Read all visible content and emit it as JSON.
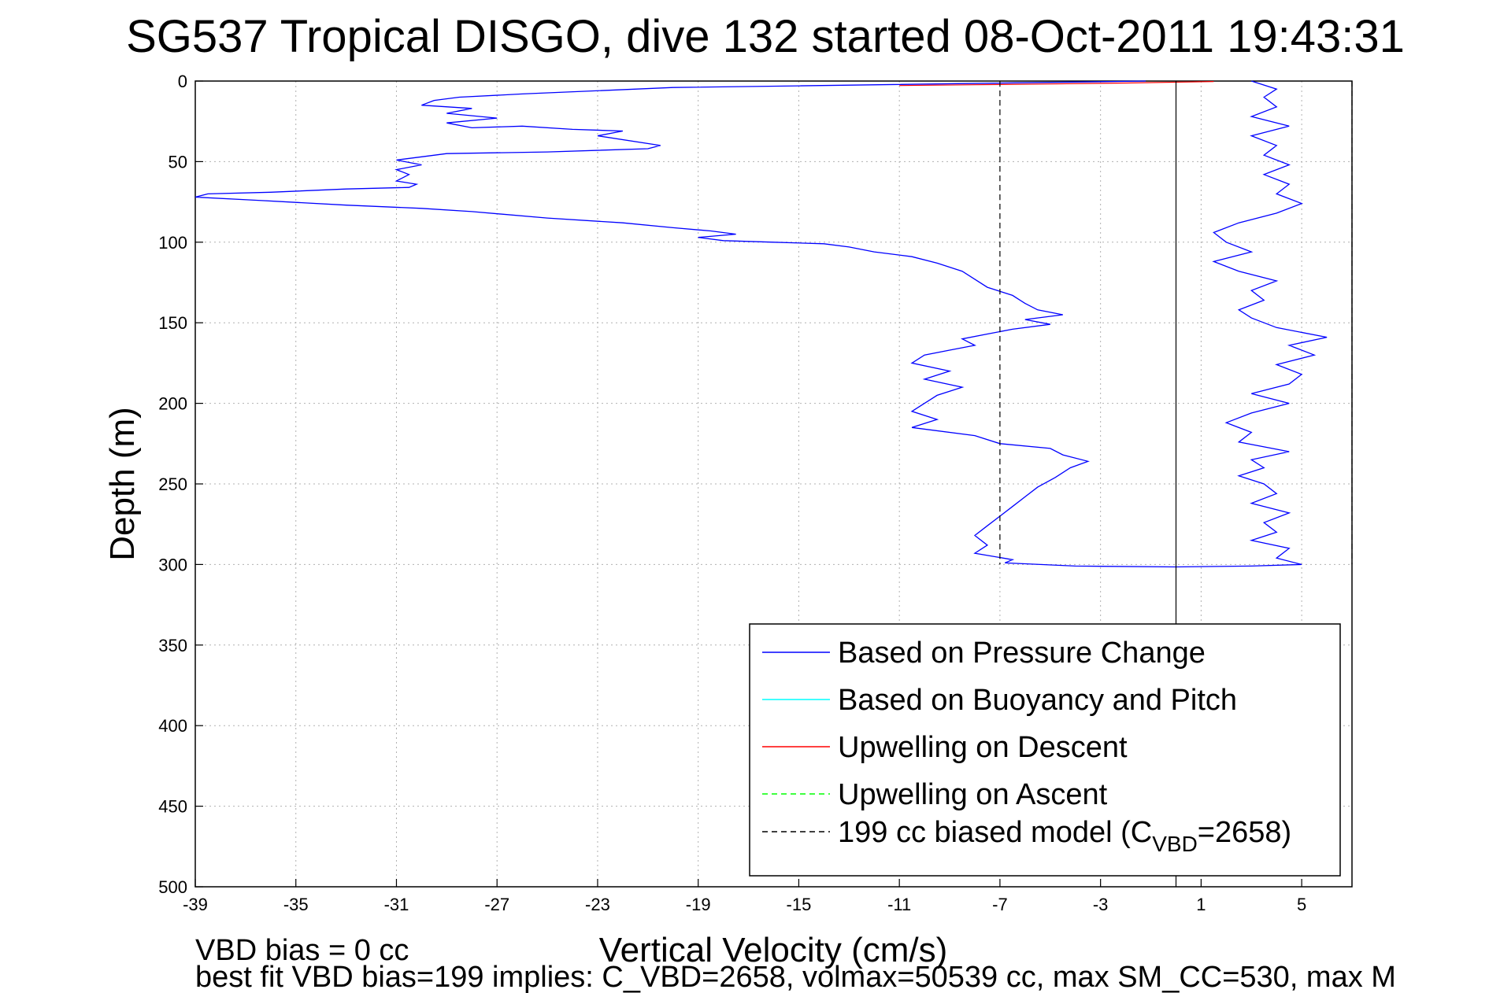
{
  "chart_data": {
    "type": "line",
    "title": "SG537 Tropical DISGO, dive 132 started 08-Oct-2011 19:43:31",
    "xlabel": "Vertical Velocity (cm/s)",
    "ylabel": "Depth (m)",
    "xlim": [
      -39,
      7
    ],
    "ylim": [
      0,
      500
    ],
    "y_reversed": true,
    "grid": true,
    "x_ticks": [
      -39,
      -35,
      -31,
      -27,
      -23,
      -19,
      -15,
      -11,
      -7,
      -3,
      1,
      5
    ],
    "y_ticks": [
      0,
      50,
      100,
      150,
      200,
      250,
      300,
      350,
      400,
      450,
      500
    ],
    "legend_position": "bottom-right",
    "legend": [
      {
        "label": "Based on Pressure Change",
        "color": "#0000ff",
        "style": "solid"
      },
      {
        "label": "Based on Buoyancy and Pitch",
        "color": "#00ffff",
        "style": "solid"
      },
      {
        "label": "Upwelling on Descent",
        "color": "#ff0000",
        "style": "solid"
      },
      {
        "label": "Upwelling on Ascent",
        "color": "#00ff00",
        "style": "dashed"
      },
      {
        "label": "199 cc biased model (C",
        "sub": "VBD",
        "tail": "=2658)",
        "color": "#000000",
        "style": "dashed"
      }
    ],
    "series": [
      {
        "color": "#0000ff",
        "style": "solid",
        "points": [
          [
            -1.2,
            0
          ],
          [
            -15,
            3
          ],
          [
            -20,
            4
          ],
          [
            -26,
            8
          ],
          [
            -28.5,
            10
          ],
          [
            -29.5,
            12
          ],
          [
            -30,
            15
          ],
          [
            -28,
            17
          ],
          [
            -29,
            20
          ],
          [
            -27,
            23
          ],
          [
            -29,
            26
          ],
          [
            -28,
            29
          ],
          [
            -26,
            28
          ],
          [
            -24,
            30
          ],
          [
            -22,
            31
          ],
          [
            -23,
            34
          ],
          [
            -20.5,
            40
          ],
          [
            -21,
            42
          ],
          [
            -25,
            44
          ],
          [
            -29,
            45
          ],
          [
            -30,
            47
          ],
          [
            -31,
            49
          ],
          [
            -30,
            52
          ],
          [
            -31,
            55
          ],
          [
            -30.5,
            58
          ],
          [
            -31,
            62
          ],
          [
            -30.2,
            64
          ],
          [
            -30.5,
            66
          ],
          [
            -33,
            67
          ],
          [
            -36,
            69
          ],
          [
            -38.5,
            70
          ],
          [
            -39,
            72
          ],
          [
            -36.5,
            74
          ],
          [
            -33,
            77
          ],
          [
            -30,
            79
          ],
          [
            -28,
            81
          ],
          [
            -25,
            85
          ],
          [
            -22,
            88
          ],
          [
            -20,
            91
          ],
          [
            -18.5,
            93
          ],
          [
            -17.5,
            95
          ],
          [
            -19,
            97
          ],
          [
            -18,
            99
          ],
          [
            -16,
            100
          ],
          [
            -14,
            101
          ],
          [
            -13,
            103
          ],
          [
            -12,
            106
          ],
          [
            -10.5,
            109
          ],
          [
            -9.5,
            113
          ],
          [
            -8.5,
            118
          ],
          [
            -8,
            123
          ],
          [
            -7.5,
            128
          ],
          [
            -6.5,
            133
          ],
          [
            -6,
            138
          ],
          [
            -5.5,
            142
          ],
          [
            -4.5,
            145
          ],
          [
            -6,
            148
          ],
          [
            -5,
            151
          ],
          [
            -6.5,
            154
          ],
          [
            -7.5,
            157
          ],
          [
            -8.5,
            160
          ],
          [
            -8,
            164
          ],
          [
            -9,
            167
          ],
          [
            -10,
            170
          ],
          [
            -10.5,
            175
          ],
          [
            -9,
            180
          ],
          [
            -10,
            185
          ],
          [
            -8.5,
            190
          ],
          [
            -9.5,
            195
          ],
          [
            -10,
            200
          ],
          [
            -10.5,
            205
          ],
          [
            -9.5,
            210
          ],
          [
            -10.5,
            215
          ],
          [
            -8,
            220
          ],
          [
            -7,
            225
          ],
          [
            -5,
            228
          ],
          [
            -4.5,
            232
          ],
          [
            -3.5,
            236
          ],
          [
            -4.2,
            240
          ],
          [
            -4.8,
            246
          ],
          [
            -5.5,
            252
          ],
          [
            -6,
            258
          ],
          [
            -6.5,
            264
          ],
          [
            -7,
            270
          ],
          [
            -7.5,
            276
          ],
          [
            -8,
            282
          ],
          [
            -7.5,
            288
          ],
          [
            -8,
            293
          ],
          [
            -6.5,
            297
          ],
          [
            -6.8,
            299
          ],
          [
            -4,
            301
          ],
          [
            0,
            301.5
          ],
          [
            3,
            301
          ],
          [
            5,
            300
          ],
          [
            4,
            296
          ],
          [
            4.5,
            290
          ],
          [
            3,
            285
          ],
          [
            4,
            280
          ],
          [
            3.5,
            274
          ],
          [
            4.5,
            268
          ],
          [
            3,
            262
          ],
          [
            4,
            256
          ],
          [
            3.5,
            250
          ],
          [
            2.5,
            245
          ],
          [
            3.5,
            240
          ],
          [
            3,
            235
          ],
          [
            4.5,
            230
          ],
          [
            2.5,
            224
          ],
          [
            3,
            218
          ],
          [
            2,
            212
          ],
          [
            3,
            206
          ],
          [
            4.5,
            200
          ],
          [
            3,
            194
          ],
          [
            4.5,
            188
          ],
          [
            5,
            182
          ],
          [
            4,
            176
          ],
          [
            5.5,
            170
          ],
          [
            4.5,
            164
          ],
          [
            6,
            159
          ],
          [
            4,
            153
          ],
          [
            3,
            147
          ],
          [
            2.5,
            142
          ],
          [
            3.5,
            136
          ],
          [
            3,
            130
          ],
          [
            4,
            124
          ],
          [
            2.5,
            118
          ],
          [
            1.5,
            112
          ],
          [
            3,
            106
          ],
          [
            2,
            100
          ],
          [
            1.5,
            94
          ],
          [
            2.5,
            88
          ],
          [
            4,
            82
          ],
          [
            5,
            76
          ],
          [
            4,
            70
          ],
          [
            4.5,
            64
          ],
          [
            3.5,
            58
          ],
          [
            4.5,
            52
          ],
          [
            3.5,
            46
          ],
          [
            4,
            40
          ],
          [
            3,
            34
          ],
          [
            4.5,
            28
          ],
          [
            3,
            22
          ],
          [
            4,
            16
          ],
          [
            3.5,
            10
          ],
          [
            4,
            5
          ],
          [
            3,
            0
          ]
        ]
      },
      {
        "color": "#ff0000",
        "style": "solid",
        "points": [
          [
            -11,
            2.8
          ],
          [
            -8,
            2.3
          ],
          [
            -5,
            1.8
          ],
          [
            -2,
            1.2
          ],
          [
            0.5,
            0.6
          ],
          [
            1.5,
            0.3
          ]
        ]
      },
      {
        "color": "#000000",
        "style": "dashed",
        "points": [
          [
            -7,
            0
          ],
          [
            -7,
            155
          ],
          [
            -7,
            300
          ]
        ]
      },
      {
        "color": "#000000",
        "style": "dashed",
        "points": [
          [
            7,
            0
          ],
          [
            7,
            300
          ]
        ]
      },
      {
        "color": "#000000",
        "style": "solid",
        "points": [
          [
            0,
            0
          ],
          [
            0,
            500
          ]
        ]
      }
    ],
    "footer": [
      "VBD bias = 0 cc",
      "best fit VBD bias=199 implies: C_VBD=2658, volmax=50539 cc, max SM_CC=530, max M"
    ]
  }
}
